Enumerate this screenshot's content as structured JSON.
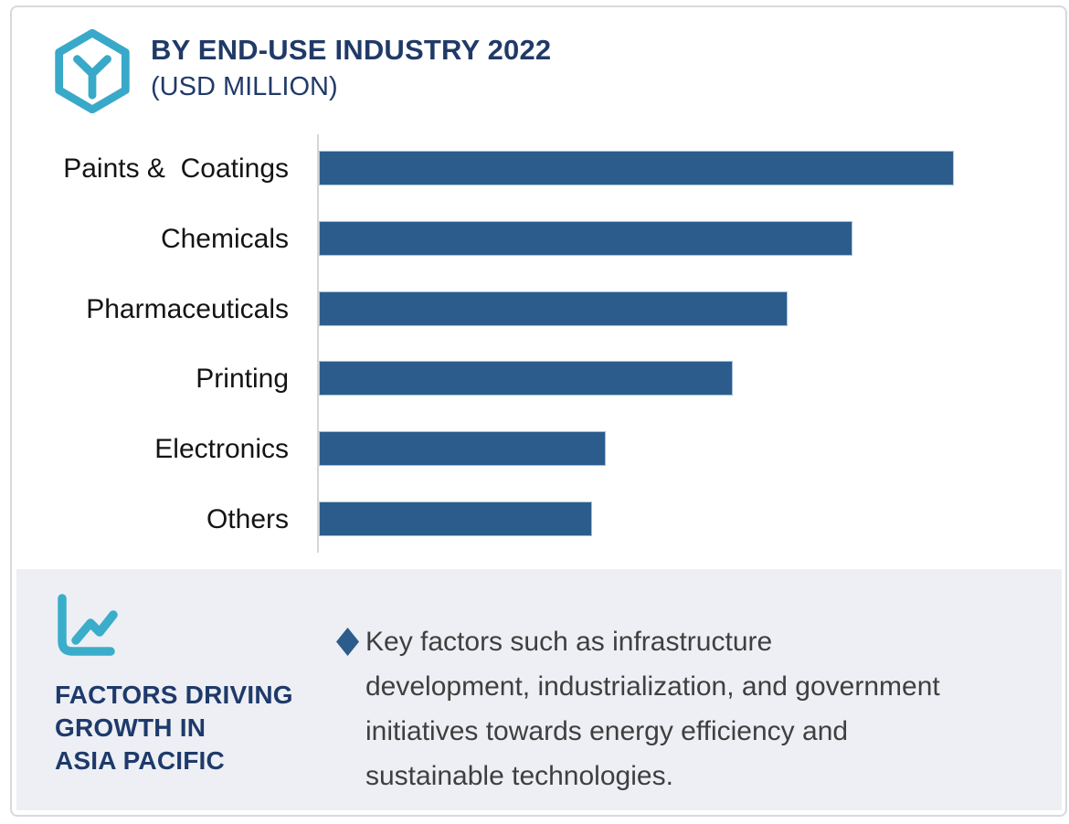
{
  "colors": {
    "bar": "#2b5c8c",
    "bar_edge": "#a2c1de",
    "teal_icon": "#38a9c8",
    "navy": "#203a68",
    "panel_bg": "#edeff4",
    "body_text": "#3f3f3f",
    "label_text": "#141414",
    "axis_line": "#d6d6d6",
    "frame_border": "#d7d9de"
  },
  "header": {
    "title": "BY END-USE INDUSTRY 2022",
    "subtitle": "(USD MILLION)",
    "logo_icon": "hexagon-y-icon"
  },
  "chart_data": {
    "type": "bar",
    "orientation": "horizontal",
    "title": "BY END-USE INDUSTRY 2022",
    "subtitle": "(USD MILLION)",
    "unit": "USD Million",
    "categories": [
      "Paints &  Coatings",
      "Chemicals",
      "Pharmaceuticals",
      "Printing",
      "Electronics",
      "Others"
    ],
    "values_pct_of_max": [
      100,
      84,
      73.8,
      65.2,
      45.2,
      43
    ],
    "value_axis_note": "no ticks, gridlines or data labels shown; values read as bar length relative to longest bar",
    "bar_color": "#2b5c8c",
    "grid": false,
    "legend": false
  },
  "panel": {
    "icon": "line-chart-icon",
    "heading_lines": [
      "FACTORS DRIVING",
      "GROWTH IN",
      "ASIA PACIFIC"
    ],
    "bullet_glyph": "diamond",
    "bullet_text": "Key factors such as infrastructure development, industrialization, and government initiatives towards energy efficiency and sustainable technologies.",
    "bullet_lines": [
      "Key factors such as infrastructure",
      "development, industrialization, and government",
      "initiatives towards energy efficiency and",
      "sustainable technologies."
    ]
  }
}
